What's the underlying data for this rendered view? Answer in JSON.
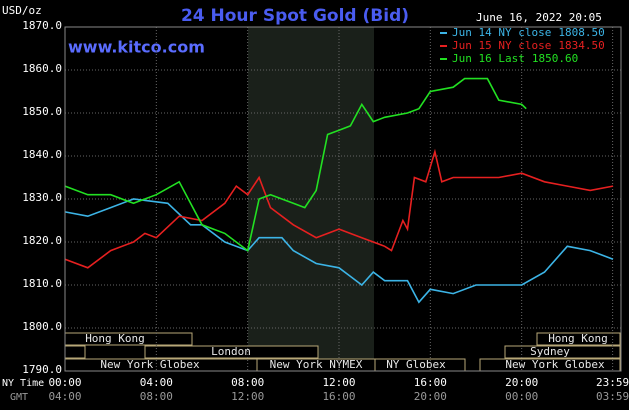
{
  "chart_data": {
    "type": "line",
    "title": "24 Hour Spot Gold (Bid)",
    "timestamp": "June 16, 2022 20:05",
    "watermark": "www.kitco.com",
    "ylabel": "USD/oz",
    "x_axis_name": "NY Time",
    "x2_axis_name": "GMT",
    "xlim": [
      0,
      24
    ],
    "ylim": [
      1790,
      1870
    ],
    "grid": true,
    "xticks": [
      {
        "value": 0,
        "label": "00:00"
      },
      {
        "value": 4,
        "label": "04:00"
      },
      {
        "value": 8,
        "label": "08:00"
      },
      {
        "value": 12,
        "label": "12:00"
      },
      {
        "value": 16,
        "label": "16:00"
      },
      {
        "value": 20,
        "label": "20:00"
      },
      {
        "value": 23.983,
        "label": "23:59"
      }
    ],
    "x2tick_labels": [
      "04:00",
      "08:00",
      "12:00",
      "16:00",
      "20:00",
      "00:00",
      "03:59"
    ],
    "yticks": [
      {
        "value": 1790,
        "label": "1790.0"
      },
      {
        "value": 1800,
        "label": "1800.0"
      },
      {
        "value": 1810,
        "label": "1810.0"
      },
      {
        "value": 1820,
        "label": "1820.0"
      },
      {
        "value": 1830,
        "label": "1830.0"
      },
      {
        "value": 1840,
        "label": "1840.0"
      },
      {
        "value": 1850,
        "label": "1850.0"
      },
      {
        "value": 1860,
        "label": "1860.0"
      },
      {
        "value": 1870,
        "label": "1870.0"
      }
    ],
    "sessions": [
      "Hong Kong",
      "Hong Kong",
      "London",
      "Sydney",
      "New York Globex",
      "New York NYMEX",
      "NY Globex",
      "New York Globex"
    ],
    "series": [
      {
        "name": "Jun 14 NY close",
        "close": {
          "value": 1808.5,
          "label": "1808.50"
        },
        "color": "#3cb4e6",
        "x": [
          0,
          1,
          2,
          3,
          4.5,
          5.5,
          6,
          7,
          8,
          8.5,
          9.5,
          10,
          11,
          12,
          12.5,
          13,
          13.5,
          14,
          15,
          15.5,
          16,
          17,
          18,
          19,
          20,
          21,
          22,
          23,
          24
        ],
        "values": [
          1827,
          1826,
          1828,
          1830,
          1829,
          1824,
          1824,
          1820,
          1818,
          1821,
          1821,
          1818,
          1815,
          1814,
          1812,
          1810,
          1813,
          1811,
          1811,
          1806,
          1809,
          1808,
          1810,
          1810,
          1810,
          1813,
          1819,
          1818,
          1816
        ]
      },
      {
        "name": "Jun 15 NY close",
        "close": {
          "value": 1834.5,
          "label": "1834.50"
        },
        "color": "#e62020",
        "x": [
          0,
          1,
          2,
          3,
          3.5,
          4,
          5,
          6,
          7,
          7.5,
          8,
          8.5,
          9,
          10,
          11,
          12,
          13,
          14,
          14.3,
          14.8,
          15,
          15.3,
          15.8,
          16.2,
          16.5,
          17,
          19,
          20,
          21,
          22,
          23,
          24
        ],
        "values": [
          1816,
          1814,
          1818,
          1820,
          1822,
          1821,
          1826,
          1825,
          1829,
          1833,
          1831,
          1835,
          1828,
          1824,
          1821,
          1823,
          1821,
          1819,
          1818,
          1825,
          1823,
          1835,
          1834,
          1841,
          1834,
          1835,
          1835,
          1836,
          1834,
          1833,
          1832,
          1833
        ]
      },
      {
        "name": "Jun 16 Last",
        "close": {
          "value": 1850.6,
          "label": "1850.60"
        },
        "color": "#22e022",
        "x": [
          0,
          1,
          2,
          3,
          4,
          5,
          6,
          7,
          8,
          8.5,
          9,
          10,
          10.5,
          11,
          11.5,
          12,
          12.5,
          13,
          13.5,
          14,
          15,
          15.5,
          16,
          17,
          17.5,
          18.5,
          19,
          20,
          20.2
        ],
        "values": [
          1833,
          1831,
          1831,
          1829,
          1831,
          1834,
          1824,
          1822,
          1818,
          1830,
          1831,
          1829,
          1828,
          1832,
          1845,
          1846,
          1847,
          1852,
          1848,
          1849,
          1850,
          1851,
          1855,
          1856,
          1858,
          1858,
          1853,
          1852,
          1851
        ]
      }
    ]
  }
}
